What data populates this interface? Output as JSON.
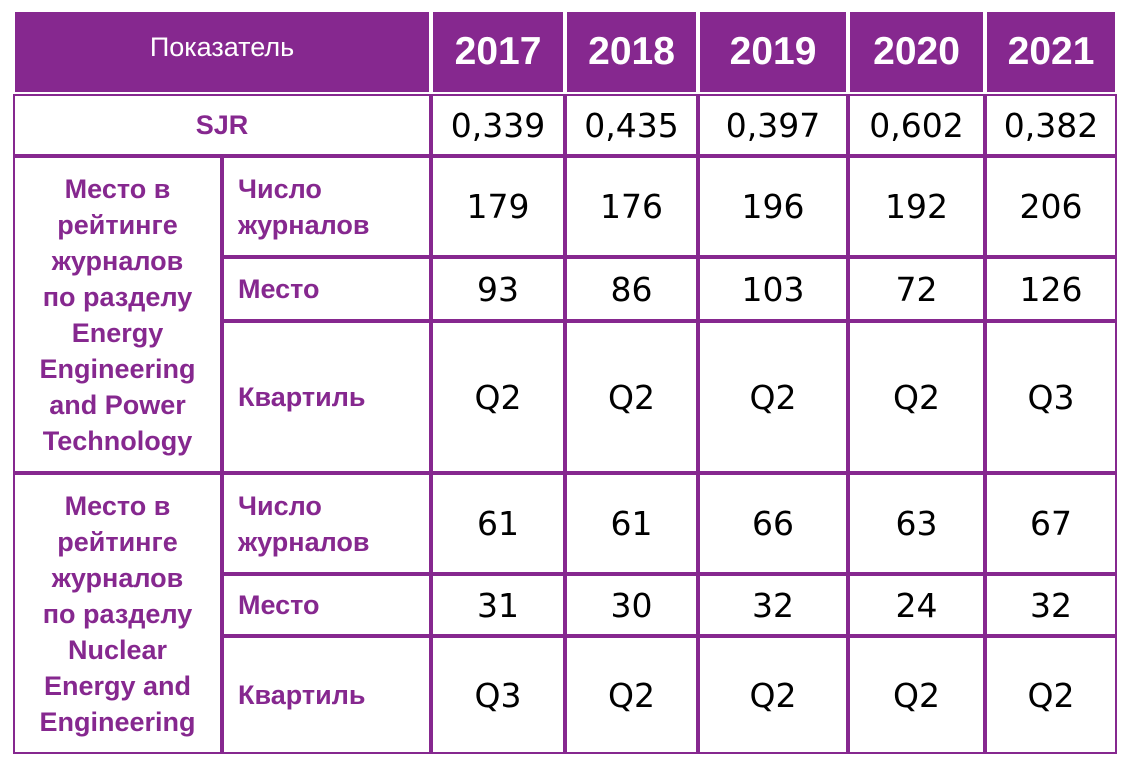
{
  "header": {
    "label": "Показатель",
    "years": [
      "2017",
      "2018",
      "2019",
      "2020",
      "2021"
    ]
  },
  "sjr": {
    "label": "SJR",
    "values": [
      "0,339",
      "0,435",
      "0,397",
      "0,602",
      "0,382"
    ]
  },
  "groups": [
    {
      "label_lines": [
        "Место в",
        "рейтинге",
        "журналов",
        "по разделу",
        "Energy",
        "Engineering",
        "and Power",
        "Technology"
      ],
      "rows": [
        {
          "label_lines": [
            "Число",
            "журналов"
          ],
          "values": [
            "179",
            "176",
            "196",
            "192",
            "206"
          ]
        },
        {
          "label_lines": [
            "Место"
          ],
          "values": [
            "93",
            "86",
            "103",
            "72",
            "126"
          ]
        },
        {
          "label_lines": [
            "Квартиль"
          ],
          "values": [
            "Q2",
            "Q2",
            "Q2",
            "Q2",
            "Q3"
          ]
        }
      ]
    },
    {
      "label_lines": [
        "Место в",
        "рейтинге",
        "журналов",
        "по разделу",
        "Nuclear",
        "Energy and",
        "Engineering"
      ],
      "rows": [
        {
          "label_lines": [
            "Число",
            "журналов"
          ],
          "values": [
            "61",
            "61",
            "66",
            "63",
            "67"
          ]
        },
        {
          "label_lines": [
            "Место"
          ],
          "values": [
            "31",
            "30",
            "32",
            "24",
            "32"
          ]
        },
        {
          "label_lines": [
            "Квартиль"
          ],
          "values": [
            "Q3",
            "Q2",
            "Q2",
            "Q2",
            "Q2"
          ]
        }
      ]
    }
  ],
  "colors": {
    "accent": "#86288f",
    "background": "#ffffff",
    "text": "#000000"
  }
}
